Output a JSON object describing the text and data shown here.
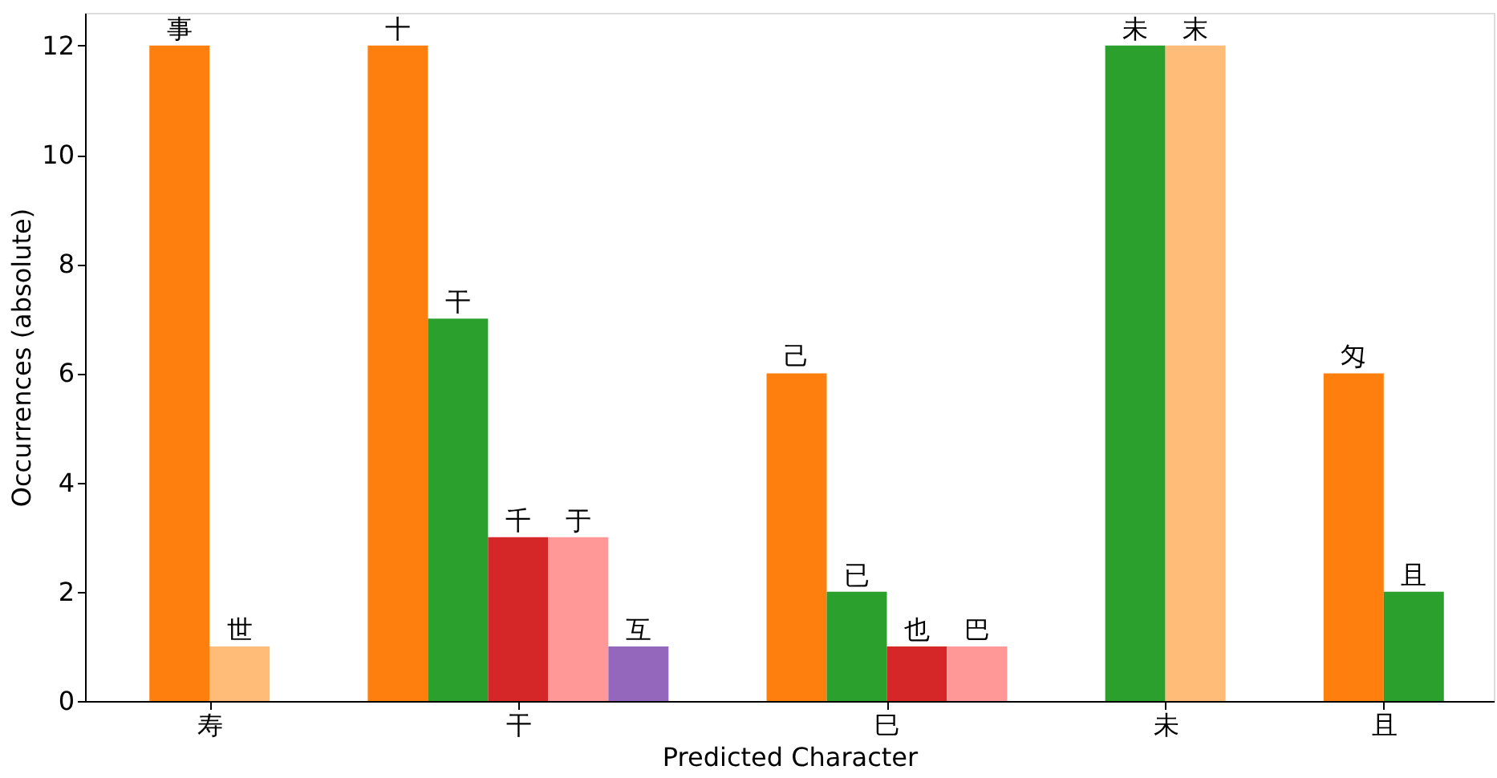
{
  "chart_data": {
    "type": "bar",
    "xlabel": "Predicted Character",
    "ylabel": "Occurrences (absolute)",
    "categories": [
      "寿",
      "干",
      "巳",
      "未",
      "且"
    ],
    "series": [
      {
        "values": [
          12,
          12,
          6,
          12,
          6
        ],
        "colors": [
          "#ff7f0e",
          "#ff7f0e",
          "#ff7f0e",
          "#2ca02c",
          "#ff7f0e"
        ],
        "value_labels": [
          "事",
          "十",
          "己",
          "未",
          "匁"
        ]
      },
      {
        "values": [
          1,
          7,
          2,
          12,
          2
        ],
        "colors": [
          "#ffbb78",
          "#2ca02c",
          "#2ca02c",
          "#ffbb78",
          "#2ca02c"
        ],
        "value_labels": [
          "世",
          "干",
          "已",
          "末",
          "且"
        ]
      },
      {
        "values": [
          null,
          3,
          1,
          null,
          null
        ],
        "colors": [
          null,
          "#d62728",
          "#d62728",
          null,
          null
        ],
        "value_labels": [
          null,
          "千",
          "也",
          null,
          null
        ]
      },
      {
        "values": [
          null,
          3,
          1,
          null,
          null
        ],
        "colors": [
          null,
          "#ff9896",
          "#ff9896",
          null,
          null
        ],
        "value_labels": [
          null,
          "于",
          "巴",
          null,
          null
        ]
      },
      {
        "values": [
          null,
          1,
          null,
          null,
          null
        ],
        "colors": [
          null,
          "#9467bd",
          null,
          null,
          null
        ],
        "value_labels": [
          null,
          "互",
          null,
          null,
          null
        ]
      }
    ],
    "ylim": [
      0,
      12.6
    ],
    "yticks": [
      0,
      2,
      4,
      6,
      8,
      10,
      12
    ],
    "grid": false
  }
}
